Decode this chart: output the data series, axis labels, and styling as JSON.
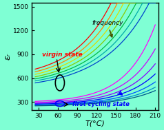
{
  "xlabel": "T(°C)",
  "ylabel": "εᵣ",
  "xlim": [
    20,
    215
  ],
  "ylim": [
    200,
    1550
  ],
  "xticks": [
    30,
    60,
    90,
    120,
    150,
    180,
    210
  ],
  "yticks": [
    300,
    600,
    900,
    1200,
    1500
  ],
  "background_color": "#7fffd4",
  "virgin_colors": [
    "#ff0000",
    "#ff8800",
    "#dddd00",
    "#88cc00",
    "#00bb44",
    "#00aaaa",
    "#0044cc"
  ],
  "cycling_colors": [
    "#ff00ff",
    "#cc00ff",
    "#8800ff",
    "#0000ff",
    "#0055ff",
    "#0088cc",
    "#005588"
  ],
  "T_range": [
    25,
    210
  ],
  "n_points": 300,
  "virgin_label": "virgin state",
  "cycling_label": "first cycling state",
  "freq_label": "frequency",
  "virgin_label_color": "#ff0000",
  "cycling_label_color": "#0000ff",
  "freq_label_color": "#000000",
  "freq_arrow_color": "#445500"
}
